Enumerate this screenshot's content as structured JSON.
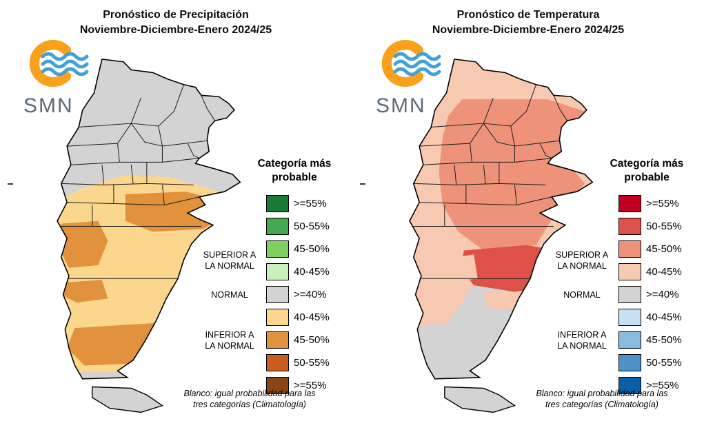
{
  "panels": [
    {
      "id": "precipitacion",
      "title_line1": "Pronóstico de Precipitación",
      "title_line2": "Noviembre-Diciembre-Enero 2024/25",
      "logo": {
        "text": "SMN"
      },
      "legend": {
        "title": "Categoría más\nprobable",
        "category_superior": "SUPERIOR A\nLA NORMAL",
        "category_normal": "NORMAL",
        "category_inferior": "INFERIOR A\nLA NORMAL",
        "items": [
          {
            "label": ">=55%",
            "color": "#1a7b36"
          },
          {
            "label": "50-55%",
            "color": "#44a94f"
          },
          {
            "label": "45-50%",
            "color": "#7ed160"
          },
          {
            "label": "40-45%",
            "color": "#c9f0ba"
          },
          {
            "label": ">=40%",
            "color": "#d3d3d3"
          },
          {
            "label": "40-45%",
            "color": "#fbd78e"
          },
          {
            "label": "45-50%",
            "color": "#e2913c"
          },
          {
            "label": "50-55%",
            "color": "#c95e20"
          },
          {
            "label": ">=55%",
            "color": "#8a4515"
          }
        ]
      },
      "footnote": "Blanco: igual probabilidad para las\ntres categorías (Climatología)"
    },
    {
      "id": "temperatura",
      "title_line1": "Pronóstico de Temperatura",
      "title_line2": "Noviembre-Diciembre-Enero 2024/25",
      "logo": {
        "text": "SMN"
      },
      "legend": {
        "title": "Categoría más\nprobable",
        "category_superior": "SUPERIOR A\nLA NORMAL",
        "category_normal": "NORMAL",
        "category_inferior": "INFERIOR A\nLA NORMAL",
        "items": [
          {
            "label": ">=55%",
            "color": "#c40022"
          },
          {
            "label": "50-55%",
            "color": "#de5148"
          },
          {
            "label": "45-50%",
            "color": "#ee9379"
          },
          {
            "label": "40-45%",
            "color": "#f7c9b1"
          },
          {
            "label": ">=40%",
            "color": "#d3d3d3"
          },
          {
            "label": "40-45%",
            "color": "#c7e0f2"
          },
          {
            "label": "45-50%",
            "color": "#8abade"
          },
          {
            "label": "50-55%",
            "color": "#4e93c6"
          },
          {
            "label": ">=55%",
            "color": "#0a60a6"
          }
        ]
      },
      "footnote": "Blanco: igual probabilidad para las\ntres categorías (Climatología)"
    }
  ],
  "logo_colors": {
    "ring": "#f9a11b",
    "waves": "#44a1d8",
    "text": "#5a6a76"
  }
}
